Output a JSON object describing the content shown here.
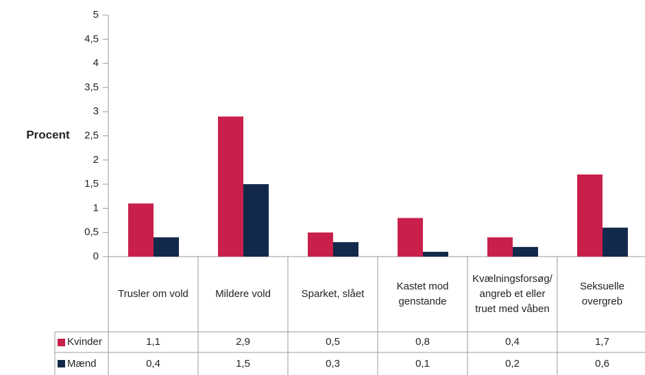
{
  "chart_data": {
    "type": "bar",
    "y_label": "Procent",
    "categories": [
      "Trusler om vold",
      "Mildere vold",
      "Sparket, slået",
      "Kastet mod genstande",
      "Kvælningsforsøg/angreb et eller truet med våben",
      "Seksuelle overgreb"
    ],
    "series": [
      {
        "name": "Kvinder",
        "color": "#c8204b",
        "values": [
          1.1,
          2.9,
          0.5,
          0.8,
          0.4,
          1.7
        ],
        "value_labels": [
          "1,1",
          "2,9",
          "0,5",
          "0,8",
          "0,4",
          "1,7"
        ]
      },
      {
        "name": "Mænd",
        "color": "#13294b",
        "values": [
          0.4,
          1.5,
          0.3,
          0.1,
          0.2,
          0.6
        ],
        "value_labels": [
          "0,4",
          "1,5",
          "0,3",
          "0,1",
          "0,2",
          "0,6"
        ]
      }
    ],
    "ylim": [
      0,
      5
    ],
    "yticks": [
      0,
      {
        "value": 0.5,
        "label": "0,5"
      },
      1,
      {
        "value": 1.5,
        "label": "1,5"
      },
      2,
      {
        "value": 2.5,
        "label": "2,5"
      },
      3,
      {
        "value": 3.5,
        "label": "3,5"
      },
      4,
      {
        "value": 4.5,
        "label": "4,5"
      },
      5
    ],
    "grid": false
  }
}
